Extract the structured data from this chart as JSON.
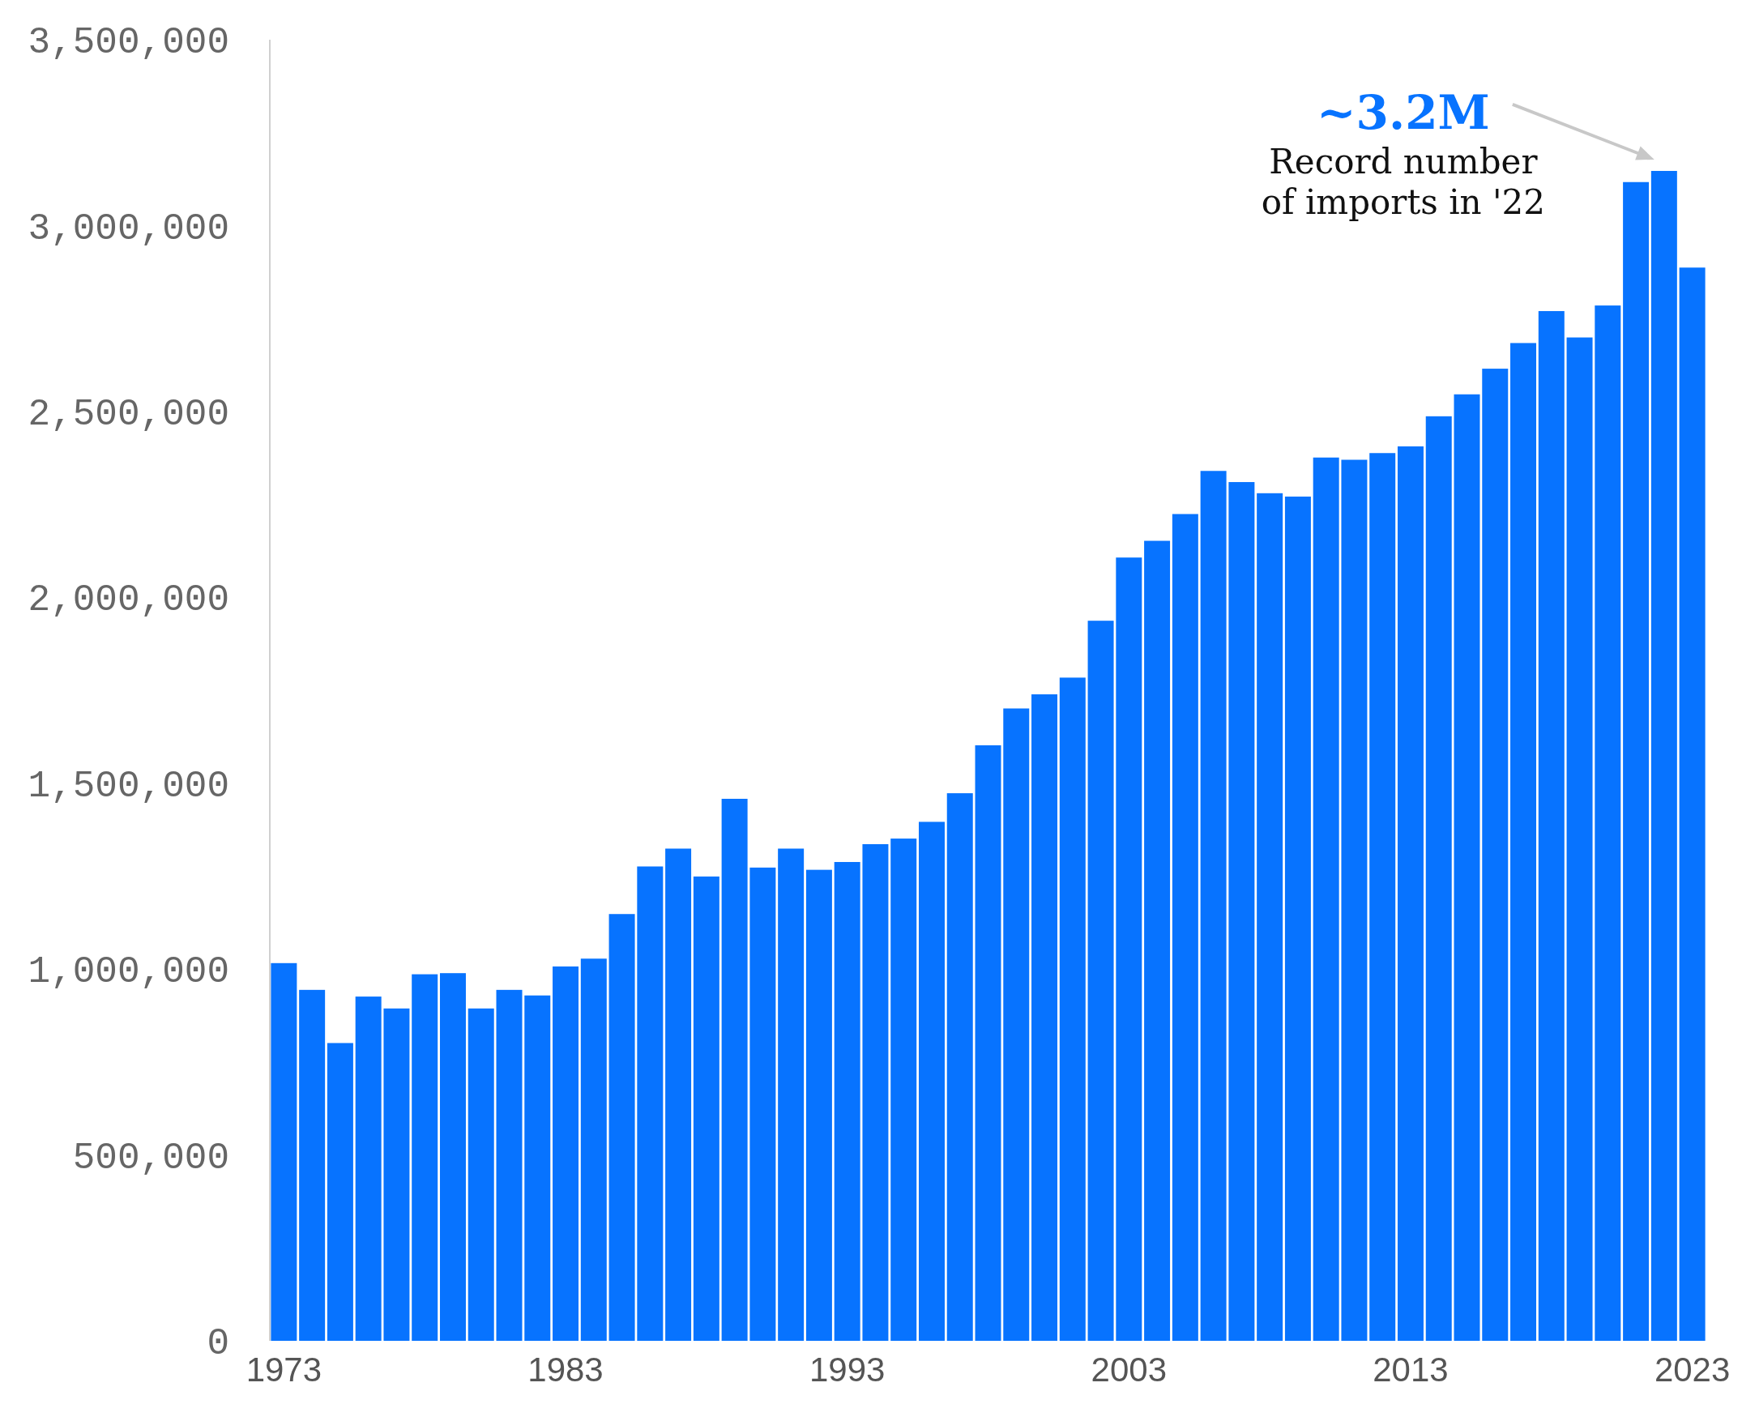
{
  "chart_data": {
    "type": "bar",
    "categories": [
      "1973",
      null,
      null,
      null,
      null,
      null,
      null,
      null,
      null,
      null,
      "1983",
      null,
      null,
      null,
      null,
      null,
      null,
      null,
      null,
      null,
      "1993",
      null,
      null,
      null,
      null,
      null,
      null,
      null,
      null,
      null,
      "2003",
      null,
      null,
      null,
      null,
      null,
      null,
      null,
      null,
      null,
      "2013",
      null,
      null,
      null,
      null,
      null,
      null,
      null,
      null,
      null,
      "2023"
    ],
    "values": [
      1016000,
      944000,
      801000,
      926000,
      894000,
      986000,
      989000,
      894000,
      944000,
      929000,
      1007000,
      1028000,
      1148000,
      1276000,
      1324000,
      1249000,
      1458000,
      1273000,
      1324000,
      1267000,
      1288000,
      1336000,
      1351000,
      1396000,
      1473000,
      1602000,
      1701000,
      1739000,
      1784000,
      1937000,
      2107000,
      2152000,
      2224000,
      2340000,
      2310000,
      2280000,
      2271000,
      2376000,
      2370000,
      2388000,
      2406000,
      2487000,
      2546000,
      2615000,
      2684000,
      2770000,
      2699000,
      2785000,
      3117000,
      3147000,
      2887000
    ],
    "color": "#0773ff",
    "ylim": [
      0,
      3500000
    ],
    "yticks": [
      {
        "value": 0,
        "label": "0"
      },
      {
        "value": 500000,
        "label": "500,000"
      },
      {
        "value": 1000000,
        "label": "1,000,000"
      },
      {
        "value": 1500000,
        "label": "1,500,000"
      },
      {
        "value": 2000000,
        "label": "2,000,000"
      },
      {
        "value": 2500000,
        "label": "2,500,000"
      },
      {
        "value": 3000000,
        "label": "3,000,000"
      },
      {
        "value": 3500000,
        "label": "3,500,000"
      }
    ],
    "grid": false,
    "annotations": [
      "~3.2M",
      "Record number of imports in '22"
    ]
  }
}
